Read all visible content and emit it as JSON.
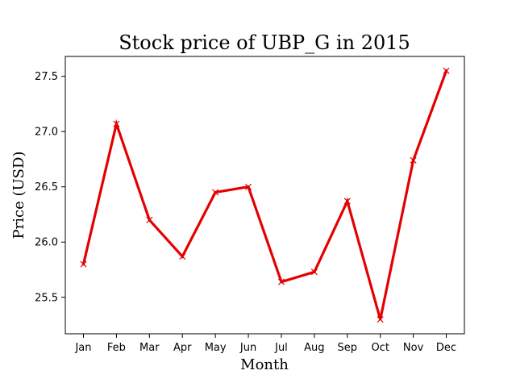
{
  "chart_data": {
    "type": "line",
    "title": "Stock price of UBP_G in 2015",
    "xlabel": "Month",
    "ylabel": "Price (USD)",
    "categories": [
      "Jan",
      "Feb",
      "Mar",
      "Apr",
      "May",
      "Jun",
      "Jul",
      "Aug",
      "Sep",
      "Oct",
      "Nov",
      "Dec"
    ],
    "series": [
      {
        "values": [
          25.8,
          27.07,
          26.2,
          25.87,
          26.45,
          26.5,
          25.64,
          25.73,
          26.37,
          25.3,
          26.74,
          27.55
        ],
        "color": "#e50000",
        "marker": "x"
      }
    ],
    "ylim": [
      25.17,
      27.68
    ],
    "yticks": [
      25.5,
      26.0,
      26.5,
      27.0,
      27.5
    ],
    "ytick_labels": [
      "25.5",
      "26.0",
      "26.5",
      "27.0",
      "27.5"
    ],
    "grid": false,
    "legend": "none"
  }
}
